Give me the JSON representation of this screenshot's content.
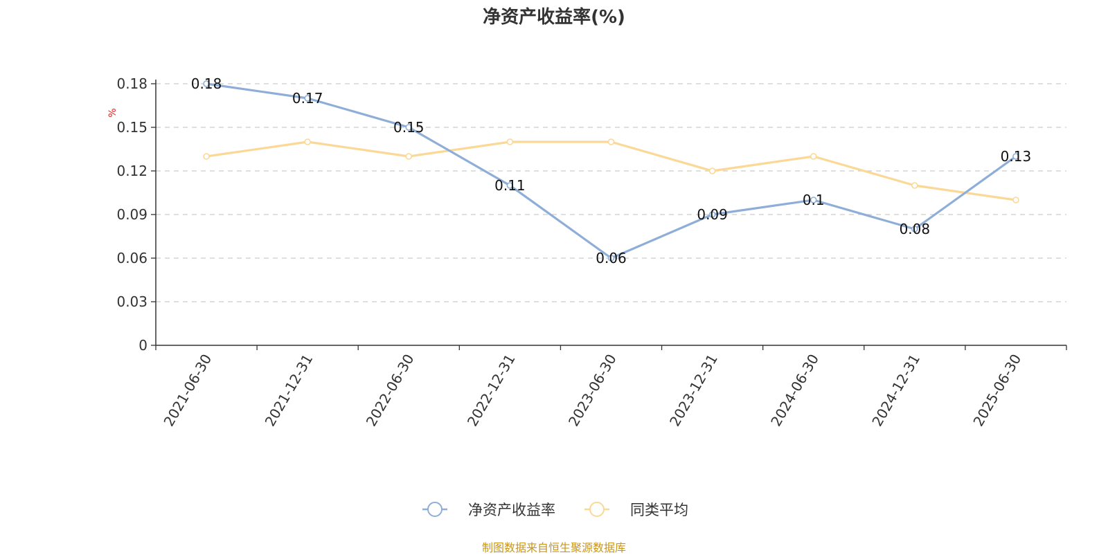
{
  "title": "净资产收益率(%)",
  "source": "制图数据来自恒生聚源数据库",
  "colors": {
    "roe": "#8eaed8",
    "avg": "#fbd896",
    "source": "#c8961a",
    "unit": "#e02020",
    "grid": "#cccccc",
    "axis": "#333333"
  },
  "chart_data": {
    "type": "line",
    "title": "净资产收益率(%)",
    "ylabel": "%",
    "xlabel": "",
    "categories": [
      "2021-06-30",
      "2021-12-31",
      "2022-06-30",
      "2022-12-31",
      "2023-06-30",
      "2023-12-31",
      "2024-06-30",
      "2024-12-31",
      "2025-06-30"
    ],
    "yticks": [
      "0",
      "0.03",
      "0.06",
      "0.09",
      "0.12",
      "0.15",
      "0.18"
    ],
    "ylim": [
      0,
      0.18
    ],
    "grid": true,
    "legend_position": "bottom-center",
    "series": [
      {
        "name": "净资产收益率",
        "color": "#8eaed8",
        "values": [
          0.18,
          0.17,
          0.15,
          0.11,
          0.06,
          0.09,
          0.1,
          0.08,
          0.13
        ],
        "labels": [
          "0.18",
          "0.17",
          "0.15",
          "0.11",
          "0.06",
          "0.09",
          "0.1",
          "0.08",
          "0.13"
        ]
      },
      {
        "name": "同类平均",
        "color": "#fbd896",
        "values": [
          0.13,
          0.14,
          0.13,
          0.14,
          0.14,
          0.12,
          0.13,
          0.11,
          0.1
        ]
      }
    ]
  }
}
